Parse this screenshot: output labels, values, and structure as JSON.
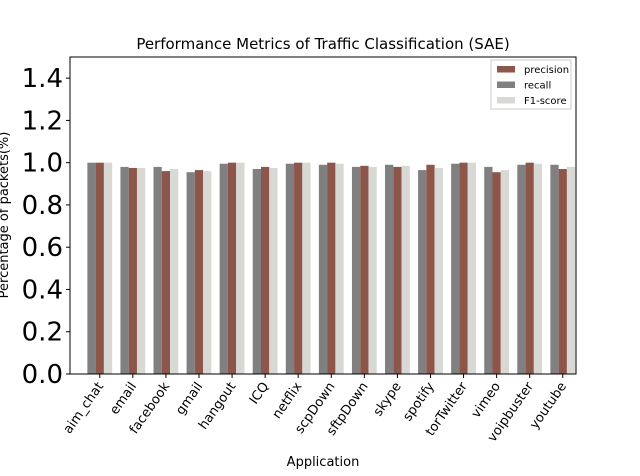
{
  "chart_data": {
    "type": "bar",
    "title": "Performance Metrics of Traffic Classification (SAE)",
    "xlabel": "Application",
    "ylabel": "Percentage of packets(%)",
    "ylim": [
      0,
      1.5
    ],
    "yticks": [
      "0.0",
      "0.2",
      "0.4",
      "0.6",
      "0.8",
      "1.0",
      "1.2",
      "1.4"
    ],
    "categories": [
      "aim_chat",
      "email",
      "facebook",
      "gmail",
      "hangout",
      "ICQ",
      "netflix",
      "scpDown",
      "sftpDown",
      "skype",
      "spotify",
      "torTwitter",
      "vimeo",
      "voipbuster",
      "youtube"
    ],
    "legend_position": "top-right",
    "series": [
      {
        "name": "recall",
        "color": "#808080",
        "values": [
          1.0,
          0.98,
          0.98,
          0.955,
          0.995,
          0.97,
          0.995,
          0.99,
          0.98,
          0.99,
          0.965,
          0.995,
          0.98,
          0.99,
          0.99
        ]
      },
      {
        "name": "precision",
        "color": "#8c564b",
        "values": [
          1.0,
          0.975,
          0.96,
          0.965,
          1.0,
          0.98,
          1.0,
          1.0,
          0.985,
          0.98,
          0.99,
          1.0,
          0.955,
          1.0,
          0.97
        ]
      },
      {
        "name": "F1-score",
        "color": "#d8d9d4",
        "values": [
          1.0,
          0.975,
          0.97,
          0.96,
          1.0,
          0.975,
          1.0,
          0.995,
          0.98,
          0.985,
          0.975,
          1.0,
          0.965,
          0.995,
          0.98
        ]
      }
    ],
    "legend_order": [
      "precision",
      "recall",
      "F1-score"
    ],
    "grid": false
  }
}
